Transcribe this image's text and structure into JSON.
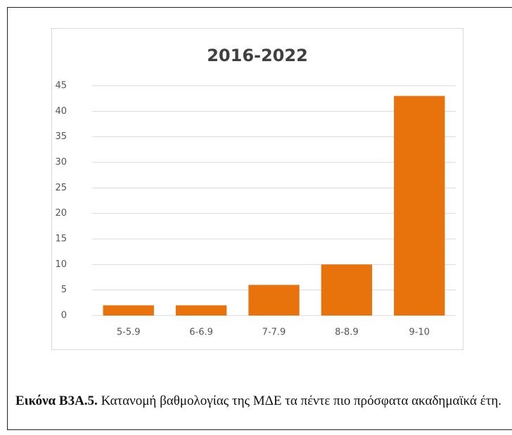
{
  "chart_data": {
    "type": "bar",
    "title": "2016-2022",
    "categories": [
      "5-5.9",
      "6-6.9",
      "7-7.9",
      "8-8.9",
      "9-10"
    ],
    "values": [
      2,
      2,
      6,
      10,
      43
    ],
    "color": "#e8720c",
    "ylim": [
      0,
      45
    ],
    "yticks": [
      0,
      5,
      10,
      15,
      20,
      25,
      30,
      35,
      40,
      45
    ],
    "grid": true
  },
  "caption": {
    "label": "Εικόνα Β3Α.5.",
    "text": "Κατανομή βαθμολογίας της ΜΔΕ τα πέντε πιο πρόσφατα ακαδημαϊκά έτη."
  }
}
